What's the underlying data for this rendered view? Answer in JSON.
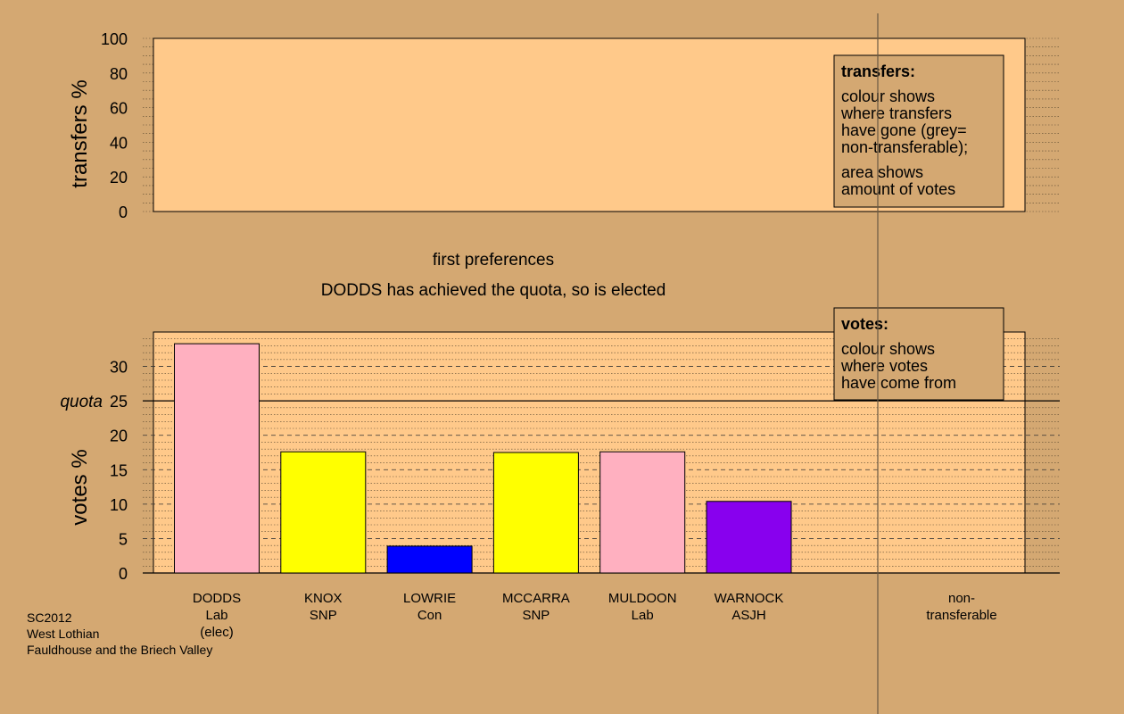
{
  "colors": {
    "page_bg": "#d4a872",
    "plot_bg": "#ffc98a",
    "box_bg": "#d4a872",
    "Lab": "#ffb0c0",
    "SNP": "#ffff00",
    "Con": "#0000ff",
    "ASJH": "#8800ee"
  },
  "top_panel": {
    "ylabel": "transfers %",
    "yticks": [
      "0",
      "20",
      "40",
      "60",
      "80",
      "100"
    ],
    "legend": {
      "title": "transfers:",
      "line1": "colour shows",
      "line2": "where transfers",
      "line3": "have gone (grey=",
      "line4": "non-transferable);",
      "line5": "area shows",
      "line6": "amount of votes"
    }
  },
  "stage": {
    "label": "first preferences",
    "message": "DODDS has achieved the quota, so is elected"
  },
  "bottom_legend": {
    "title": "votes:",
    "line1": "colour shows",
    "line2": "where votes",
    "line3": "have come from"
  },
  "footer": {
    "line1": "SC2012",
    "line2": "West Lothian",
    "line3": "Fauldhouse and the Briech Valley"
  },
  "chart_data": [
    {
      "type": "bar",
      "panel": "transfers",
      "ylabel": "transfers %",
      "ylim": [
        0,
        100
      ],
      "yticks": [
        0,
        20,
        40,
        60,
        80,
        100
      ],
      "values": []
    },
    {
      "type": "bar",
      "panel": "votes",
      "ylabel": "votes %",
      "ylim": [
        0,
        35
      ],
      "yticks": [
        0,
        5,
        10,
        15,
        20,
        25,
        30
      ],
      "quota": 25,
      "quota_label": "quota",
      "categories": [
        {
          "name": "DODDS",
          "party": "Lab",
          "note": "(elec)",
          "value": 33.3,
          "color": "#ffb0c0"
        },
        {
          "name": "KNOX",
          "party": "SNP",
          "note": "",
          "value": 17.6,
          "color": "#ffff00"
        },
        {
          "name": "LOWRIE",
          "party": "Con",
          "note": "",
          "value": 3.9,
          "color": "#0000ff"
        },
        {
          "name": "MCCARRA",
          "party": "SNP",
          "note": "",
          "value": 17.5,
          "color": "#ffff00"
        },
        {
          "name": "MULDOON",
          "party": "Lab",
          "note": "",
          "value": 17.6,
          "color": "#ffb0c0"
        },
        {
          "name": "WARNOCK",
          "party": "ASJH",
          "note": "",
          "value": 10.4,
          "color": "#8800ee"
        }
      ],
      "nontransferable": {
        "label1": "non-",
        "label2": "transferable",
        "value": 0
      }
    }
  ]
}
